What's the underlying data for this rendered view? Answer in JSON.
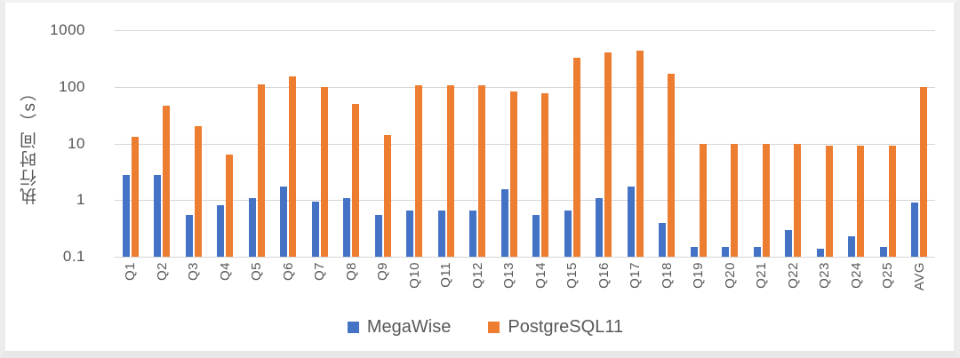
{
  "chart_data": {
    "type": "bar",
    "scale": "log",
    "title": "",
    "xlabel": "",
    "ylabel": "执行时间（s）",
    "ylim": [
      0.1,
      1000
    ],
    "yticks": [
      "1000",
      "100",
      "10",
      "1",
      "0.1"
    ],
    "grid": true,
    "legend_position": "bottom",
    "categories": [
      "Q1",
      "Q2",
      "Q3",
      "Q4",
      "Q5",
      "Q6",
      "Q7",
      "Q8",
      "Q9",
      "Q10",
      "Q11",
      "Q12",
      "Q13",
      "Q14",
      "Q15",
      "Q16",
      "Q17",
      "Q18",
      "Q19",
      "Q20",
      "Q21",
      "Q22",
      "Q23",
      "Q24",
      "Q25",
      "AVG"
    ],
    "series": [
      {
        "name": "MegaWise",
        "color": "#4472c4",
        "values": [
          2.8,
          2.8,
          0.55,
          0.8,
          1.1,
          1.75,
          0.95,
          1.1,
          0.55,
          0.65,
          0.65,
          0.65,
          1.55,
          0.55,
          0.65,
          1.1,
          1.75,
          0.4,
          0.15,
          0.15,
          0.15,
          0.3,
          0.14,
          0.23,
          0.15,
          0.9
        ]
      },
      {
        "name": "PostgreSQL11",
        "color": "#ed7d31",
        "values": [
          13,
          46,
          20,
          6.3,
          110,
          155,
          98,
          50,
          14,
          105,
          105,
          105,
          82,
          76,
          330,
          400,
          430,
          170,
          9.8,
          9.8,
          9.8,
          9.8,
          9.2,
          9.2,
          9.2,
          98
        ]
      }
    ]
  },
  "legend": {
    "megawise_label": "MegaWise",
    "postgresql_label": "PostgreSQL11"
  },
  "axis": {
    "y_title": "执行时间（s）"
  },
  "colors": {
    "megawise": "#4472c4",
    "postgresql": "#ed7d31",
    "gridline": "#d6d6d6",
    "tick_text": "#555555",
    "background": "#ffffff"
  }
}
